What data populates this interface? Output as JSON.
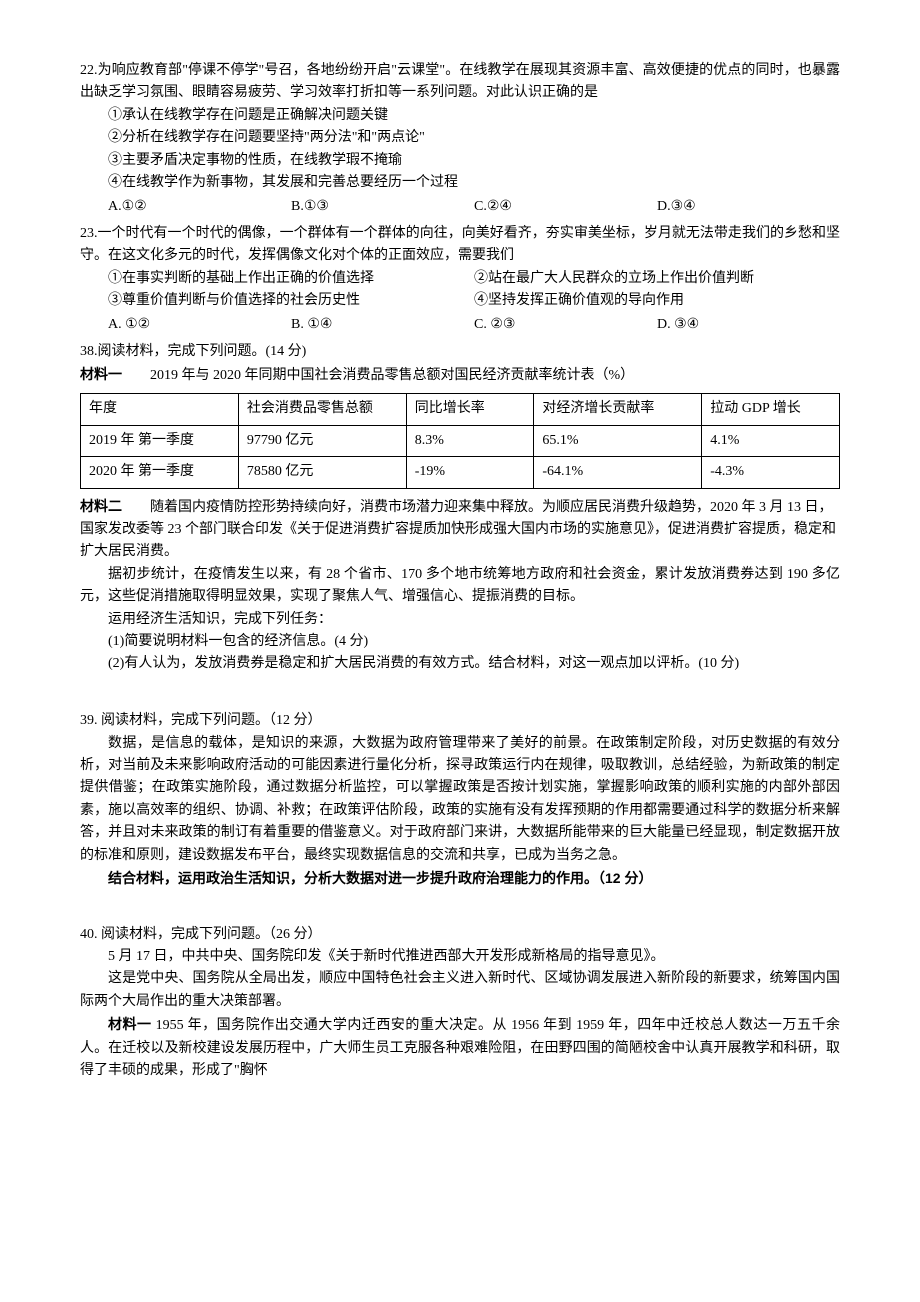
{
  "q22": {
    "num": "22.",
    "stem": "为响应教育部\"停课不停学\"号召，各地纷纷开启\"云课堂\"。在线教学在展现其资源丰富、高效便捷的优点的同时，也暴露出缺乏学习氛围、眼睛容易疲劳、学习效率打折扣等一系列问题。对此认识正确的是",
    "s1": "①承认在线教学存在问题是正确解决问题关键",
    "s2": "②分析在线教学存在问题要坚持\"两分法\"和\"两点论\"",
    "s3": "③主要矛盾决定事物的性质，在线教学瑕不掩瑜",
    "s4": "④在线教学作为新事物，其发展和完善总要经历一个过程",
    "optA": "A.①②",
    "optB": "B.①③",
    "optC": "C.②④",
    "optD": "D.③④"
  },
  "q23": {
    "num": "23.",
    "stem": "一个时代有一个时代的偶像，一个群体有一个群体的向往，向美好看齐，夯实审美坐标，岁月就无法带走我们的乡愁和坚守。在这文化多元的时代，发挥偶像文化对个体的正面效应，需要我们",
    "s1": "①在事实判断的基础上作出正确的价值选择",
    "s2": "②站在最广大人民群众的立场上作出价值判断",
    "s3": "③尊重价值判断与价值选择的社会历史性",
    "s4": "④坚持发挥正确价值观的导向作用",
    "optA": "A. ①②",
    "optB": "B. ①④",
    "optC": "C. ②③",
    "optD": "D. ③④"
  },
  "q38": {
    "header": "38.阅读材料，完成下列问题。(14 分)",
    "mat1_label": "材料一",
    "mat1_title": "2019 年与 2020 年同期中国社会消费品零售总额对国民经济贡献率统计表（%）",
    "table": {
      "cols": [
        "年度",
        "社会消费品零售总额",
        "同比增长率",
        "对经济增长贡献率",
        "拉动 GDP 增长"
      ],
      "rows": [
        [
          "2019 年 第一季度",
          "97790 亿元",
          "8.3%",
          "65.1%",
          "4.1%"
        ],
        [
          "2020 年 第一季度",
          "78580 亿元",
          "-19%",
          "-64.1%",
          "-4.3%"
        ]
      ],
      "col_widths": [
        "140px",
        "150px",
        "110px",
        "150px",
        "120px"
      ]
    },
    "mat2_label": "材料二",
    "mat2_p1": "随着国内疫情防控形势持续向好，消费市场潜力迎来集中释放。为顺应居民消费升级趋势，2020 年 3 月 13 日，国家发改委等 23 个部门联合印发《关于促进消费扩容提质加快形成强大国内市场的实施意见》，促进消费扩容提质，稳定和扩大居民消费。",
    "mat2_p2": "据初步统计，在疫情发生以来，有 28 个省市、170 多个地市统筹地方政府和社会资金，累计发放消费券达到 190 多亿元，这些促消措施取得明显效果，实现了聚焦人气、增强信心、提振消费的目标。",
    "task_intro": "运用经济生活知识，完成下列任务：",
    "task1": "(1)简要说明材料一包含的经济信息。(4 分)",
    "task2": "(2)有人认为，发放消费券是稳定和扩大居民消费的有效方式。结合材料，对这一观点加以评析。(10 分)"
  },
  "q39": {
    "header": "39. 阅读材料，完成下列问题。（12 分）",
    "p1": "数据，是信息的载体，是知识的来源，大数据为政府管理带来了美好的前景。在政策制定阶段，对历史数据的有效分析，对当前及未来影响政府活动的可能因素进行量化分析，探寻政策运行内在规律，吸取教训，总结经验，为新政策的制定提供借鉴；在政策实施阶段，通过数据分析监控，可以掌握政策是否按计划实施，掌握影响政策的顺利实施的内部外部因素，施以高效率的组织、协调、补救；在政策评估阶段，政策的实施有没有发挥预期的作用都需要通过科学的数据分析来解答，并且对未来政策的制订有着重要的借鉴意义。对于政府部门来讲，大数据所能带来的巨大能量已经显现，制定数据开放的标准和原则，建设数据发布平台，最终实现数据信息的交流和共享，已成为当务之急。",
    "prompt": "结合材料，运用政治生活知识，分析大数据对进一步提升政府治理能力的作用。（12 分）"
  },
  "q40": {
    "header": "40. 阅读材料，完成下列问题。（26 分）",
    "p1": "5 月 17 日，中共中央、国务院印发《关于新时代推进西部大开发形成新格局的指导意见》。",
    "p2": "这是党中央、国务院从全局出发，顺应中国特色社会主义进入新时代、区域协调发展进入新阶段的新要求，统筹国内国际两个大局作出的重大决策部署。",
    "mat1_label": "材料一",
    "mat1_text": "1955 年，国务院作出交通大学内迁西安的重大决定。从 1956 年到 1959 年，四年中迁校总人数达一万五千余人。在迁校以及新校建设发展历程中，广大师生员工克服各种艰难险阻，在田野四围的简陋校舍中认真开展教学和科研，取得了丰硕的成果，形成了\"胸怀"
  }
}
